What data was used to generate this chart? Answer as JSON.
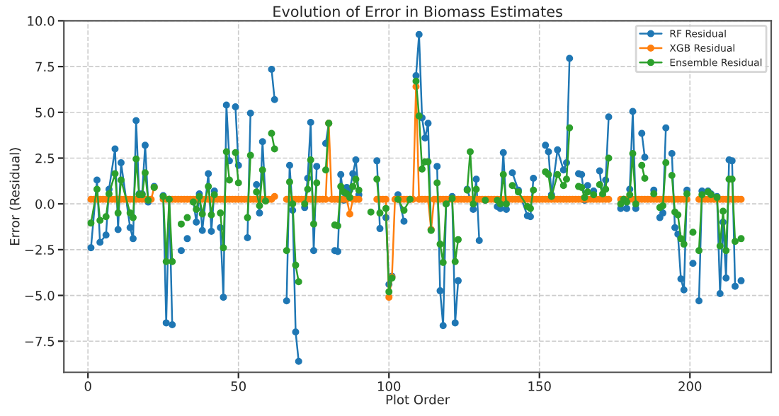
{
  "chart_data": {
    "type": "line",
    "title": "Evolution of Error in Biomass Estimates",
    "xlabel": "Plot Order",
    "ylabel": "Error (Residual)",
    "xlim": [
      -8,
      227
    ],
    "ylim": [
      -9.2,
      10.0
    ],
    "xticks": [
      0,
      50,
      100,
      150,
      200
    ],
    "yticks": [
      {
        "value": -7.5,
        "label": "−7.5"
      },
      {
        "value": -5.0,
        "label": "−5.0"
      },
      {
        "value": -2.5,
        "label": "−2.5"
      },
      {
        "value": 0,
        "label": "0.0"
      },
      {
        "value": 2.5,
        "label": "2.5"
      },
      {
        "value": 5.0,
        "label": "5.0"
      },
      {
        "value": 7.5,
        "label": "7.5"
      },
      {
        "value": 10.0,
        "label": "10.0"
      }
    ],
    "grid": true,
    "legend": "top right",
    "marker": "circle",
    "line_style": "solid",
    "series": [
      {
        "name": "RF Residual",
        "color": "#1f77b4",
        "x": [
          1,
          3,
          4,
          6,
          7,
          9,
          10,
          11,
          14,
          15,
          16,
          17,
          18,
          19,
          20,
          21,
          22,
          24,
          25,
          26,
          27,
          28,
          29,
          31,
          32,
          33,
          34,
          35,
          36,
          37,
          38,
          40,
          41,
          42,
          43,
          44,
          45,
          46,
          47,
          48,
          49,
          50,
          51,
          53,
          54,
          55,
          56,
          57,
          58,
          59,
          60,
          61,
          62,
          63,
          66,
          67,
          68,
          69,
          70,
          71,
          72,
          73,
          74,
          75,
          76,
          77,
          79,
          80,
          81,
          82,
          83,
          84,
          85,
          86,
          87,
          88,
          89,
          90,
          91,
          96,
          97,
          98,
          99,
          100,
          101,
          102,
          103,
          105,
          106,
          109,
          110,
          111,
          112,
          113,
          114,
          115,
          116,
          117,
          118,
          119,
          121,
          122,
          123,
          124,
          126,
          128,
          129,
          130,
          131,
          132,
          133,
          136,
          137,
          138,
          139,
          140,
          141,
          143,
          146,
          147,
          148,
          150,
          152,
          153,
          154,
          156,
          158,
          159,
          160,
          161,
          163,
          164,
          165,
          166,
          167,
          168,
          169,
          170,
          171,
          172,
          173,
          174,
          177,
          178,
          179,
          180,
          181,
          182,
          183,
          184,
          185,
          186,
          188,
          189,
          190,
          191,
          192,
          193,
          194,
          195,
          196,
          197,
          198,
          199,
          200,
          201,
          202,
          203,
          204,
          206,
          207,
          208,
          209,
          210,
          211,
          212,
          213,
          214,
          215,
          216,
          217
        ],
        "values": [
          -2.4,
          1.3,
          -2.1,
          -1.7,
          0.8,
          3.0,
          -1.4,
          2.25,
          -1.3,
          -1.9,
          4.55,
          0.55,
          0.55,
          3.2,
          0.1,
          null,
          0.95,
          null,
          0.45,
          -6.5,
          0.25,
          -6.6,
          null,
          -2.55,
          null,
          -1.9,
          null,
          0.2,
          -1.0,
          0.55,
          -1.45,
          1.65,
          -1.5,
          0.7,
          null,
          -1.3,
          -5.1,
          5.4,
          2.35,
          null,
          5.3,
          2.1,
          null,
          -1.85,
          4.95,
          null,
          1.05,
          -0.5,
          3.4,
          0.2,
          null,
          7.35,
          5.7,
          null,
          -5.3,
          2.1,
          -0.35,
          -7.0,
          -8.6,
          null,
          -0.2,
          1.4,
          4.45,
          -2.55,
          2.05,
          null,
          3.3,
          4.4,
          null,
          -2.55,
          -2.6,
          1.6,
          0.2,
          0.9,
          0.75,
          1.65,
          2.4,
          0.5,
          null,
          2.35,
          -1.35,
          null,
          -0.75,
          -4.4,
          -3.95,
          null,
          0.5,
          -0.95,
          null,
          7.0,
          9.25,
          4.7,
          3.6,
          4.4,
          -1.4,
          null,
          2.05,
          -4.75,
          -6.65,
          0.0,
          0.4,
          -6.5,
          -4.2,
          null,
          0.8,
          -0.3,
          1.35,
          -2.0,
          null,
          0.2,
          null,
          -0.15,
          -0.25,
          2.8,
          -0.3,
          null,
          1.7,
          0.75,
          -0.65,
          -0.7,
          1.4,
          null,
          3.2,
          2.85,
          0.5,
          2.95,
          1.85,
          2.25,
          7.95,
          null,
          1.65,
          1.6,
          0.2,
          1.0,
          null,
          0.7,
          null,
          1.8,
          0.4,
          1.3,
          4.75,
          null,
          -0.25,
          0.25,
          -0.25,
          0.8,
          5.05,
          -0.25,
          null,
          3.85,
          2.55,
          null,
          0.75,
          null,
          -0.75,
          -0.5,
          4.15,
          null,
          2.75,
          -1.3,
          -1.65,
          -4.1,
          -4.7,
          0.75,
          null,
          -3.25,
          null,
          -5.3,
          0.7,
          0.7,
          0.55,
          null,
          0.4,
          -4.9,
          -1.0,
          -4.05,
          2.4,
          2.35,
          -4.5,
          null,
          -4.2
        ]
      },
      {
        "name": "XGB Residual",
        "color": "#ff7f0e",
        "x": [
          1,
          2,
          3,
          4,
          5,
          6,
          7,
          8,
          9,
          10,
          11,
          12,
          13,
          14,
          15,
          16,
          17,
          18,
          19,
          20,
          21,
          22,
          23,
          24,
          25,
          26,
          27,
          28,
          29,
          30,
          31,
          32,
          33,
          34,
          35,
          36,
          37,
          38,
          39,
          40,
          41,
          42,
          43,
          44,
          45,
          46,
          47,
          48,
          49,
          50,
          51,
          52,
          53,
          54,
          55,
          56,
          57,
          58,
          59,
          60,
          61,
          62,
          63,
          64,
          65,
          66,
          67,
          68,
          69,
          70,
          71,
          72,
          73,
          74,
          75,
          76,
          77,
          78,
          79,
          80,
          81,
          82,
          83,
          84,
          85,
          86,
          87,
          88,
          89,
          90,
          91,
          92,
          93,
          94,
          95,
          96,
          97,
          98,
          99,
          100,
          101,
          102,
          103,
          104,
          105,
          106,
          107,
          108,
          109,
          110,
          111,
          112,
          113,
          114,
          115,
          116,
          117,
          118,
          119,
          120,
          121,
          122,
          123,
          124,
          125,
          126,
          127,
          128,
          129,
          130,
          131,
          132,
          133,
          134,
          135,
          136,
          137,
          138,
          139,
          140,
          141,
          142,
          143,
          144,
          145,
          146,
          147,
          148,
          149,
          150,
          151,
          152,
          153,
          154,
          155,
          156,
          157,
          158,
          159,
          160,
          161,
          162,
          163,
          164,
          165,
          166,
          167,
          168,
          169,
          170,
          171,
          172,
          173,
          174,
          175,
          176,
          177,
          178,
          179,
          180,
          181,
          182,
          183,
          184,
          185,
          186,
          187,
          188,
          189,
          190,
          191,
          192,
          193,
          194,
          195,
          196,
          197,
          198,
          199,
          200,
          201,
          202,
          203,
          204,
          205,
          206,
          207,
          208,
          209,
          210,
          211,
          212,
          213,
          214,
          215,
          216,
          217
        ],
        "values": [
          0.25,
          0.25,
          0.25,
          0.25,
          0.25,
          0.25,
          0.25,
          0.25,
          0.25,
          0.25,
          0.25,
          0.25,
          0.25,
          0.25,
          0.25,
          0.25,
          0.25,
          0.25,
          0.25,
          0.25,
          0.25,
          0.9,
          null,
          null,
          0.25,
          0.25,
          0.25,
          0.25,
          0.25,
          0.25,
          0.25,
          0.25,
          0.25,
          0.25,
          0.25,
          0.25,
          0.25,
          0.25,
          0.25,
          0.25,
          0.25,
          0.25,
          0.25,
          0.25,
          0.25,
          0.25,
          0.25,
          0.25,
          0.25,
          0.25,
          0.25,
          0.25,
          0.25,
          0.25,
          0.25,
          0.25,
          0.25,
          0.25,
          0.25,
          0.25,
          0.25,
          0.4,
          null,
          null,
          null,
          0.25,
          0.25,
          0.25,
          0.25,
          0.25,
          0.25,
          0.25,
          0.25,
          0.25,
          0.25,
          0.25,
          0.25,
          0.25,
          0.25,
          4.4,
          0.25,
          0.25,
          0.25,
          0.25,
          0.25,
          0.25,
          -0.55,
          0.25,
          0.25,
          0.25,
          null,
          null,
          null,
          null,
          null,
          0.25,
          0.25,
          0.25,
          0.25,
          -5.1,
          -4.0,
          0.25,
          0.25,
          0.25,
          0.25,
          0.25,
          0.25,
          0.25,
          6.4,
          0.25,
          0.25,
          0.25,
          0.25,
          -1.4,
          0.25,
          0.25,
          0.25,
          0.25,
          0.25,
          0.25,
          0.25,
          0.25,
          0.25,
          0.25,
          0.25,
          0.25,
          0.25,
          0.25,
          0.25,
          0.25,
          0.25,
          0.25,
          0.25,
          0.25,
          0.25,
          0.25,
          0.25,
          0.25,
          0.25,
          0.25,
          0.25,
          0.25,
          0.25,
          0.25,
          0.25,
          0.25,
          0.25,
          0.25,
          0.25,
          0.25,
          0.25,
          0.25,
          0.25,
          0.25,
          0.25,
          0.25,
          0.25,
          0.25,
          0.25,
          0.25,
          0.25,
          0.25,
          0.25,
          0.25,
          0.25,
          0.25,
          0.25,
          0.25,
          0.25,
          0.25,
          0.25,
          0.25,
          0.25,
          null,
          null,
          null,
          0.25,
          0.25,
          0.25,
          0.25,
          0.25,
          0.25,
          0.25,
          0.25,
          0.25,
          0.25,
          0.25,
          0.25,
          0.25,
          0.25,
          0.25,
          0.25,
          0.25,
          0.25,
          0.25,
          0.25,
          0.25,
          0.25,
          0.25,
          null,
          null,
          null,
          0.25,
          0.25,
          0.25,
          0.25,
          0.25,
          0.25,
          0.25,
          0.25,
          0.25,
          0.25,
          0.25,
          0.25,
          0.25,
          0.25,
          0.25
        ]
      },
      {
        "name": "Ensemble Residual",
        "color": "#2ca02c",
        "x": [
          1,
          3,
          4,
          6,
          7,
          9,
          10,
          11,
          14,
          15,
          16,
          17,
          18,
          19,
          20,
          21,
          22,
          24,
          25,
          26,
          27,
          28,
          29,
          31,
          32,
          33,
          34,
          35,
          36,
          37,
          38,
          40,
          41,
          42,
          43,
          44,
          45,
          46,
          47,
          48,
          49,
          50,
          51,
          53,
          54,
          55,
          56,
          57,
          58,
          59,
          60,
          61,
          62,
          63,
          66,
          67,
          68,
          69,
          70,
          71,
          72,
          73,
          74,
          75,
          76,
          77,
          79,
          80,
          81,
          82,
          83,
          84,
          85,
          86,
          87,
          88,
          89,
          90,
          91,
          94,
          95,
          96,
          97,
          98,
          99,
          100,
          101,
          102,
          103,
          105,
          107,
          108,
          109,
          110,
          111,
          112,
          113,
          114,
          115,
          116,
          117,
          118,
          119,
          121,
          122,
          123,
          124,
          126,
          127,
          128,
          129,
          130,
          132,
          133,
          136,
          137,
          138,
          139,
          140,
          141,
          143,
          146,
          147,
          148,
          150,
          152,
          153,
          154,
          156,
          158,
          159,
          160,
          161,
          163,
          164,
          165,
          166,
          167,
          168,
          169,
          170,
          171,
          172,
          173,
          174,
          177,
          178,
          179,
          180,
          181,
          182,
          183,
          184,
          185,
          186,
          188,
          189,
          190,
          191,
          192,
          193,
          194,
          195,
          196,
          197,
          198,
          199,
          200,
          201,
          202,
          203,
          204,
          206,
          207,
          208,
          209,
          210,
          211,
          212,
          213,
          214,
          215,
          216,
          217
        ],
        "values": [
          -1.05,
          0.8,
          -0.9,
          -0.7,
          0.55,
          1.65,
          -0.5,
          1.3,
          -0.5,
          -0.75,
          2.45,
          0.5,
          0.5,
          1.7,
          0.2,
          null,
          0.9,
          null,
          0.4,
          -3.15,
          0.25,
          -3.15,
          null,
          -1.1,
          null,
          -0.75,
          null,
          0.1,
          -0.3,
          0.4,
          -0.55,
          0.95,
          -0.6,
          0.5,
          null,
          -0.5,
          -2.4,
          2.85,
          1.3,
          null,
          2.8,
          1.15,
          null,
          -0.75,
          2.65,
          null,
          0.65,
          -0.1,
          1.85,
          0.15,
          null,
          3.85,
          3.0,
          null,
          -2.55,
          1.2,
          0.0,
          -3.35,
          -4.25,
          null,
          0.0,
          0.8,
          2.4,
          -1.1,
          1.15,
          null,
          1.85,
          4.4,
          null,
          -1.15,
          -1.2,
          0.95,
          0.65,
          0.55,
          0.35,
          0.95,
          1.35,
          0.75,
          null,
          -0.45,
          null,
          1.35,
          -0.5,
          null,
          -0.25,
          -4.8,
          -4.05,
          null,
          0.25,
          -0.35,
          0.25,
          null,
          6.7,
          4.8,
          1.9,
          2.3,
          2.3,
          -1.45,
          null,
          1.15,
          -2.2,
          -3.2,
          0.0,
          0.3,
          -3.15,
          -1.95,
          null,
          0.75,
          2.85,
          0.0,
          0.8,
          null,
          0.2,
          null,
          0.2,
          0.0,
          1.6,
          0.0,
          null,
          1.0,
          0.65,
          -0.15,
          -0.25,
          0.75,
          null,
          1.75,
          1.6,
          0.4,
          1.6,
          1.0,
          1.35,
          4.15,
          null,
          0.95,
          0.9,
          0.35,
          0.65,
          null,
          0.5,
          null,
          1.05,
          0.55,
          0.8,
          2.5,
          null,
          0.0,
          0.25,
          0.1,
          0.5,
          2.75,
          0.0,
          null,
          2.1,
          1.4,
          null,
          0.55,
          null,
          -0.2,
          -0.1,
          2.25,
          null,
          1.55,
          -0.45,
          -0.6,
          -1.9,
          -2.2,
          0.55,
          null,
          -1.55,
          null,
          -2.55,
          0.5,
          0.65,
          0.5,
          null,
          0.35,
          -2.3,
          -0.4,
          -2.55,
          1.35,
          1.35,
          -2.05,
          null,
          -1.9
        ]
      }
    ]
  }
}
